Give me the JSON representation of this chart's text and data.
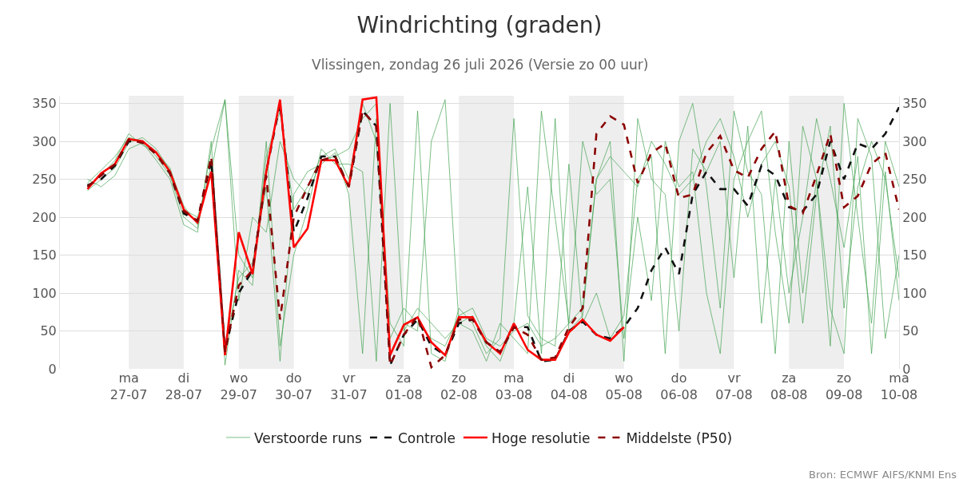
{
  "chart_data": {
    "type": "line",
    "title": "Windrichting (graden)",
    "subtitle": "Vlissingen, zondag 26 juli 2026 (Versie zo 00 uur)",
    "annotations": [
      "Bron: ECMWF AIFS/KNMI Ens"
    ],
    "x": [
      "2026-07-26T06:00",
      "2026-07-26T12:00",
      "2026-07-26T18:00",
      "2026-07-27T00:00",
      "2026-07-27T06:00",
      "2026-07-27T12:00",
      "2026-07-27T18:00",
      "2026-07-28T00:00",
      "2026-07-28T06:00",
      "2026-07-28T12:00",
      "2026-07-28T18:00",
      "2026-07-29T00:00",
      "2026-07-29T06:00",
      "2026-07-29T12:00",
      "2026-07-29T18:00",
      "2026-07-30T00:00",
      "2026-07-30T06:00",
      "2026-07-30T12:00",
      "2026-07-30T18:00",
      "2026-07-31T00:00",
      "2026-07-31T06:00",
      "2026-07-31T12:00",
      "2026-07-31T18:00",
      "2026-08-01T00:00",
      "2026-08-01T06:00",
      "2026-08-01T12:00",
      "2026-08-01T18:00",
      "2026-08-02T00:00",
      "2026-08-02T06:00",
      "2026-08-02T12:00",
      "2026-08-02T18:00",
      "2026-08-03T00:00",
      "2026-08-03T06:00",
      "2026-08-03T12:00",
      "2026-08-03T18:00",
      "2026-08-04T00:00",
      "2026-08-04T06:00",
      "2026-08-04T12:00",
      "2026-08-04T18:00",
      "2026-08-05T00:00",
      "2026-08-05T06:00",
      "2026-08-05T12:00",
      "2026-08-05T18:00",
      "2026-08-06T00:00",
      "2026-08-06T06:00",
      "2026-08-06T12:00",
      "2026-08-06T18:00",
      "2026-08-07T00:00",
      "2026-08-07T06:00",
      "2026-08-07T12:00",
      "2026-08-07T18:00",
      "2026-08-08T00:00",
      "2026-08-08T06:00",
      "2026-08-08T12:00",
      "2026-08-08T18:00",
      "2026-08-09T00:00",
      "2026-08-09T06:00",
      "2026-08-09T12:00",
      "2026-08-09T18:00",
      "2026-08-10T00:00"
    ],
    "series": [
      {
        "name": "Verstoorde runs",
        "color": "#3ca04a",
        "line_style": "solid",
        "values": [
          245,
          262,
          280,
          305,
          300,
          280,
          255,
          200,
          185,
          290,
          355,
          150,
          120,
          280,
          340,
          210,
          240,
          280,
          290,
          250,
          350,
          300,
          40,
          80,
          60,
          40,
          30,
          70,
          80,
          40,
          30,
          50,
          60,
          30,
          40,
          60,
          80,
          250,
          280,
          260,
          240,
          300,
          270,
          230,
          250,
          300,
          330,
          280,
          200,
          270,
          300,
          240,
          60,
          230,
          320,
          80,
          240,
          300,
          250,
          120
        ]
      },
      {
        "color": "#3ca04a",
        "line_style": "solid",
        "values": [
          235,
          250,
          265,
          298,
          305,
          290,
          262,
          215,
          190,
          270,
          30,
          120,
          140,
          240,
          10,
          230,
          260,
          270,
          285,
          230,
          20,
          330,
          60,
          30,
          340,
          20,
          10,
          80,
          60,
          20,
          40,
          330,
          70,
          40,
          30,
          270,
          60,
          100,
          40,
          70,
          250,
          280,
          20,
          300,
          350,
          240,
          80,
          340,
          260,
          230,
          20,
          300,
          100,
          250,
          30,
          350,
          200,
          60,
          300,
          240
        ]
      },
      {
        "color": "#3ca04a",
        "line_style": "solid",
        "values": [
          250,
          240,
          255,
          290,
          298,
          275,
          250,
          190,
          180,
          300,
          5,
          130,
          110,
          300,
          30,
          150,
          210,
          290,
          270,
          270,
          260,
          10,
          350,
          50,
          80,
          60,
          40,
          60,
          50,
          10,
          60,
          40,
          20,
          340,
          200,
          60,
          300,
          230,
          250,
          40,
          200,
          90,
          300,
          240,
          260,
          100,
          20,
          250,
          300,
          340,
          180,
          60,
          320,
          250,
          80,
          20,
          330,
          280,
          40,
          150
        ]
      },
      {
        "color": "#3ca04a",
        "line_style": "solid",
        "values": [
          240,
          255,
          275,
          310,
          295,
          285,
          265,
          210,
          200,
          260,
          355,
          90,
          200,
          180,
          300,
          250,
          230,
          275,
          280,
          290,
          330,
          350,
          20,
          60,
          50,
          300,
          355,
          60,
          70,
          30,
          10,
          60,
          240,
          20,
          330,
          50,
          70,
          250,
          300,
          10,
          330,
          250,
          230,
          50,
          290,
          260,
          300,
          120,
          320,
          60,
          250,
          100,
          200,
          330,
          250,
          160,
          280,
          20,
          260,
          90
        ]
      },
      {
        "name": "Controle",
        "color": "#111111",
        "line_style": "dashed",
        "values": [
          242,
          250,
          268,
          300,
          300,
          285,
          258,
          205,
          195,
          275,
          25,
          100,
          130,
          260,
          350,
          180,
          225,
          280,
          280,
          240,
          340,
          320,
          5,
          45,
          65,
          30,
          18,
          60,
          65,
          35,
          22,
          55,
          55,
          10,
          12,
          50,
          62,
          45,
          40,
          55,
          80,
          130,
          160,
          125,
          230,
          260,
          237,
          237,
          215,
          268,
          255,
          213,
          208,
          230,
          300,
          250,
          297,
          290,
          310,
          345
        ]
      },
      {
        "name": "Hoge resolutie",
        "color": "#ff0000",
        "line_style": "solid",
        "values": [
          237,
          258,
          270,
          303,
          300,
          285,
          260,
          210,
          193,
          260,
          18,
          180,
          125,
          260,
          355,
          160,
          185,
          275,
          275,
          240,
          355,
          358,
          18,
          58,
          68,
          35,
          18,
          68,
          68,
          35,
          20,
          60,
          25,
          12,
          12,
          48,
          65,
          45,
          37,
          55,
          null,
          null,
          null,
          null,
          null,
          null,
          null,
          null,
          null,
          null,
          null,
          null,
          null,
          null,
          null,
          null,
          null,
          null,
          null,
          null
        ]
      },
      {
        "name": "Middelste (P50)",
        "color": "#8b0000",
        "line_style": "dashed",
        "values": [
          240,
          255,
          270,
          302,
          298,
          283,
          258,
          208,
          195,
          280,
          22,
          110,
          130,
          255,
          65,
          200,
          240,
          275,
          280,
          240,
          340,
          320,
          5,
          45,
          70,
          2,
          18,
          65,
          65,
          35,
          22,
          55,
          45,
          12,
          15,
          55,
          80,
          310,
          333,
          322,
          245,
          285,
          297,
          225,
          230,
          285,
          307,
          262,
          252,
          290,
          313,
          215,
          205,
          255,
          310,
          213,
          228,
          270,
          285,
          210
        ]
      }
    ],
    "xlim": [
      "2026-07-25T18:00",
      "2026-08-10T00:00"
    ],
    "xticks": [
      {
        "value": "2026-07-27",
        "label": "ma\n27-07"
      },
      {
        "value": "2026-07-28",
        "label": "di\n28-07"
      },
      {
        "value": "2026-07-29",
        "label": "wo\n29-07"
      },
      {
        "value": "2026-07-30",
        "label": "do\n30-07"
      },
      {
        "value": "2026-07-31",
        "label": "vr\n31-07"
      },
      {
        "value": "2026-08-01",
        "label": "za\n01-08"
      },
      {
        "value": "2026-08-02",
        "label": "zo\n02-08"
      },
      {
        "value": "2026-08-03",
        "label": "ma\n03-08"
      },
      {
        "value": "2026-08-04",
        "label": "di\n04-08"
      },
      {
        "value": "2026-08-05",
        "label": "wo\n05-08"
      },
      {
        "value": "2026-08-06",
        "label": "do\n06-08"
      },
      {
        "value": "2026-08-07",
        "label": "vr\n07-08"
      },
      {
        "value": "2026-08-08",
        "label": "za\n08-08"
      },
      {
        "value": "2026-08-09",
        "label": "zo\n09-08"
      },
      {
        "value": "2026-08-10",
        "label": "ma\n10-08"
      }
    ],
    "ylim": [
      0,
      360
    ],
    "yticks": [
      0,
      50,
      100,
      150,
      200,
      250,
      300,
      350
    ],
    "y2lim": [
      0,
      360
    ],
    "y2ticks": [
      0,
      50,
      100,
      150,
      200,
      250,
      300,
      350
    ],
    "bands": [
      {
        "axis": "x",
        "from": "2026-07-27",
        "to": "2026-07-28",
        "color": "#eeeeee"
      },
      {
        "axis": "x",
        "from": "2026-07-29",
        "to": "2026-07-30",
        "color": "#eeeeee"
      },
      {
        "axis": "x",
        "from": "2026-07-31",
        "to": "2026-08-01",
        "color": "#eeeeee"
      },
      {
        "axis": "x",
        "from": "2026-08-02",
        "to": "2026-08-03",
        "color": "#eeeeee"
      },
      {
        "axis": "x",
        "from": "2026-08-04",
        "to": "2026-08-05",
        "color": "#eeeeee"
      },
      {
        "axis": "x",
        "from": "2026-08-06",
        "to": "2026-08-07",
        "color": "#eeeeee"
      },
      {
        "axis": "x",
        "from": "2026-08-08",
        "to": "2026-08-09",
        "color": "#eeeeee"
      }
    ],
    "grid": "y",
    "legend": "bottom",
    "marker": "none"
  }
}
